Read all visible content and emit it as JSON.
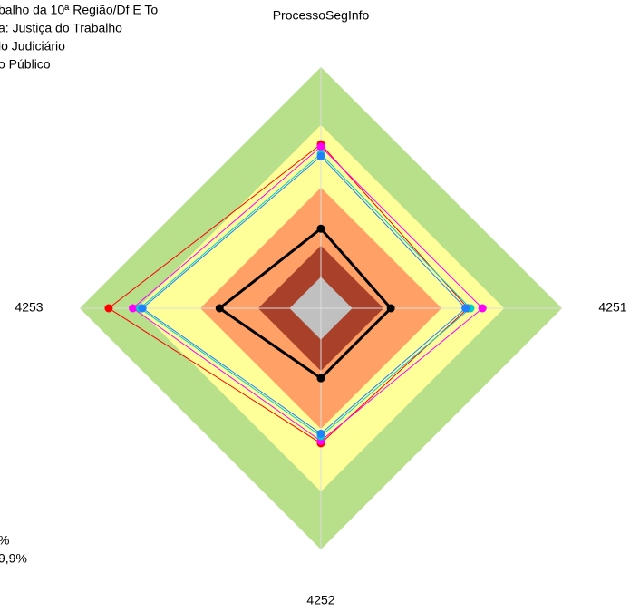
{
  "chart_data": {
    "type": "radar",
    "categories": [
      "ProcessoSegInfo",
      "4251",
      "4252",
      "4253"
    ],
    "rlim": [
      0,
      100
    ],
    "bands": [
      {
        "to": 100,
        "color": "#b8e08a"
      },
      {
        "to": 76,
        "color": "#ffff99"
      },
      {
        "to": 50,
        "color": "#ffa066"
      },
      {
        "to": 26,
        "color": "#a8402a"
      },
      {
        "to": 13,
        "color": "#c0c0c0"
      }
    ],
    "series": [
      {
        "color": "#ff0000",
        "values": [
          68,
          61,
          56,
          88
        ]
      },
      {
        "color": "#ff00ff",
        "values": [
          67,
          67,
          55,
          78
        ]
      },
      {
        "color": "#00cccc",
        "values": [
          64,
          62,
          53,
          75
        ]
      },
      {
        "color": "#1e7fff",
        "values": [
          63,
          60,
          52,
          74
        ]
      },
      {
        "color": "#000000",
        "values": [
          33,
          29,
          29,
          42
        ],
        "thick": true
      }
    ],
    "legend_lines": [
      "balho da 10ª Região/Df E To",
      "a: Justiça do Trabalho",
      "lo Judiciário",
      "o Público"
    ],
    "notes": [
      "%",
      "9,9%"
    ]
  }
}
